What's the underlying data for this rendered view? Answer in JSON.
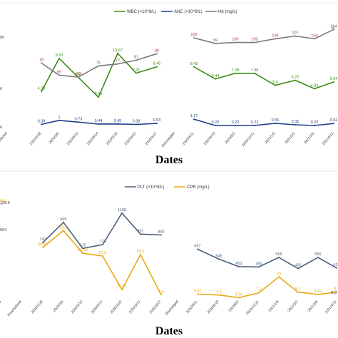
{
  "chart_data": [
    {
      "type": "line",
      "title": "",
      "xlabel": "Dates",
      "ylabel": "",
      "legend_position": "top",
      "grid": false,
      "categories": [
        "Hospitalized",
        "2020/2/28",
        "2020/3/6",
        "2020/3/10",
        "2020/3/14",
        "2020/3/20",
        "2020/3/22",
        "2020/3/27",
        "Discharged",
        "2020/4/11",
        "2020/6/19",
        "2020/8/2",
        "2020/11/21",
        "2021/1/5",
        "2021/3/2",
        "2021/3/5",
        "2021/4/12",
        "2021/7/5"
      ],
      "series": [
        {
          "name": "WBC (×10^9/L)",
          "color": "#3c8c16",
          "values": [
            null,
            4.38,
            9.83,
            6.67,
            3.45,
            10.67,
            7.41,
            8.45,
            null,
            8.43,
            6.44,
            7.38,
            7.38,
            5.4,
            6.22,
            4.83,
            5.94,
            null
          ]
        },
        {
          "name": "ANC (×10^9/L)",
          "color": "#1f3f8a",
          "values": [
            null,
            0.39,
            1.0,
            0.73,
            0.44,
            0.45,
            0.38,
            0.53,
            null,
            1.17,
            0.22,
            0.22,
            0.22,
            0.55,
            0.32,
            0.22,
            0.52,
            null
          ]
        },
        {
          "name": "Hb (mg/L)",
          "color": "#7a7a7a",
          "label_color": "#9a3a4a",
          "values": [
            null,
            78,
            65,
            63,
            75,
            77,
            81,
            88,
            null,
            105,
            99,
            100,
            100,
            104,
            107,
            104,
            114,
            null
          ]
        }
      ],
      "edge_labels": {
        "left": [
          "00",
          "6",
          "6"
        ],
        "right": [
          "11"
        ]
      }
    },
    {
      "type": "line",
      "title": "",
      "xlabel": "Dates",
      "ylabel": "",
      "legend_position": "top",
      "grid": false,
      "categories": [
        "2020/2/25",
        "Hospitalized",
        "2020/2/28",
        "2020/3/6",
        "2020/3/10",
        "2020/3/14",
        "2020/3/20",
        "2020/3/22",
        "2020/3/27",
        "Discharged",
        "2020/4/11",
        "2020/6/19",
        "2020/8/2",
        "2020/11/21",
        "2021/1/5",
        "2021/3/2",
        "2021/3/5",
        "2021/4/12",
        "2021/7/5"
      ],
      "series": [
        {
          "name": "PLT (×10^9/L)",
          "color": "#4a5f7a",
          "values": [
            null,
            null,
            747,
            995,
            676,
            723,
            1108,
            851,
            840,
            null,
            667,
            545,
            453,
            450,
            566,
            430,
            566,
            437,
            null
          ]
        },
        {
          "name": "CPR (mg/L)",
          "color": "#e8a912",
          "values": [
            128.5,
            null,
            69.43,
            92.6,
            61.48,
            57.6,
            11.51,
            59.5,
            4.6,
            null,
            5.42,
            4.2,
            0.59,
            7.2,
            29,
            8.2,
            4.82,
            8.3,
            null
          ]
        }
      ],
      "edge_labels": {
        "left": [
          "128.5",
          "554"
        ],
        "right": [
          "8.3"
        ]
      }
    }
  ]
}
